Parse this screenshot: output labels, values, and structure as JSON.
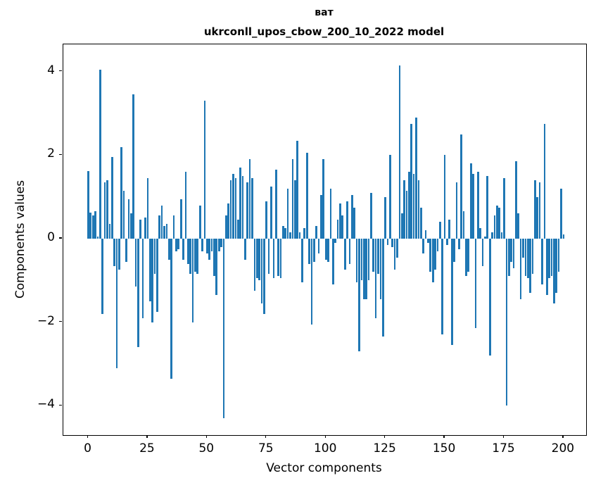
{
  "title": "ват",
  "subtitle": "ukrconll_upos_cbow_200_10_2022 model",
  "chart_data": {
    "type": "bar",
    "title": "ват",
    "subtitle": "ukrconll_upos_cbow_200_10_2022 model",
    "xlabel": "Vector components",
    "ylabel": "Components values",
    "bar_color": "#1f77b4",
    "grid": false,
    "legend": false,
    "xlim": [
      -10.5,
      209.5
    ],
    "ylim": [
      -4.705,
      4.655
    ],
    "x_ticks": [
      0,
      25,
      50,
      75,
      100,
      125,
      150,
      175,
      200
    ],
    "y_ticks": [
      -4,
      -2,
      0,
      2,
      4
    ],
    "y_tick_labels": [
      "−4",
      "−2",
      "0",
      "2",
      "4"
    ],
    "values": [
      1.62,
      0.62,
      0.55,
      0.65,
      0.05,
      4.05,
      -1.8,
      1.35,
      1.4,
      0.35,
      1.95,
      -0.65,
      -3.1,
      -0.75,
      2.2,
      1.15,
      -0.55,
      0.95,
      0.6,
      3.45,
      -1.15,
      -2.6,
      0.45,
      -1.9,
      0.5,
      1.45,
      -1.5,
      -2.0,
      -0.85,
      -1.75,
      0.55,
      0.8,
      0.3,
      0.35,
      -0.5,
      -3.35,
      0.55,
      -0.3,
      -0.25,
      0.95,
      -0.5,
      1.6,
      -0.6,
      -0.85,
      -2.0,
      -0.8,
      -0.85,
      0.8,
      -0.3,
      3.3,
      -0.35,
      -0.5,
      -0.3,
      -0.9,
      -1.35,
      -0.3,
      -0.2,
      -4.3,
      0.55,
      0.85,
      1.4,
      1.55,
      1.45,
      0.45,
      1.7,
      1.5,
      -0.5,
      1.35,
      1.9,
      1.45,
      -1.25,
      -0.95,
      -1.0,
      -1.55,
      -1.8,
      0.9,
      -0.85,
      1.25,
      -0.95,
      1.65,
      -0.9,
      -0.95,
      0.3,
      0.25,
      1.2,
      0.15,
      1.9,
      1.4,
      2.35,
      0.15,
      -1.05,
      0.25,
      2.05,
      -0.6,
      -2.05,
      -0.55,
      0.3,
      -0.35,
      1.05,
      1.9,
      -0.5,
      -0.55,
      1.2,
      -1.1,
      -0.1,
      0.45,
      0.85,
      0.55,
      -0.75,
      0.9,
      -0.6,
      1.05,
      0.75,
      -1.05,
      -2.7,
      -1.0,
      -1.45,
      -1.45,
      -1.0,
      1.1,
      -0.8,
      -1.9,
      -0.85,
      -1.45,
      -2.35,
      1.0,
      -0.15,
      2.0,
      -0.2,
      -0.75,
      -0.45,
      4.15,
      0.6,
      1.4,
      1.15,
      1.6,
      2.75,
      1.55,
      2.9,
      1.4,
      0.75,
      -0.35,
      0.2,
      -0.1,
      -0.8,
      -1.05,
      -0.75,
      -0.3,
      0.4,
      -2.3,
      2.0,
      -0.15,
      0.45,
      -2.55,
      -0.55,
      1.35,
      -0.25,
      2.5,
      0.65,
      -0.9,
      -0.8,
      1.8,
      1.55,
      -2.15,
      1.6,
      0.25,
      -0.65,
      0.05,
      1.5,
      -2.8,
      0.15,
      0.55,
      0.8,
      0.75,
      0.15,
      1.45,
      -4.0,
      -0.9,
      -0.55,
      -0.7,
      1.85,
      0.6,
      -1.45,
      -0.45,
      -0.9,
      -0.95,
      -1.3,
      -0.85,
      1.4,
      1.0,
      1.35,
      -1.1,
      2.75,
      -1.35,
      -0.95,
      -0.9,
      -1.55,
      -1.3,
      -0.8,
      1.2,
      0.1
    ]
  }
}
